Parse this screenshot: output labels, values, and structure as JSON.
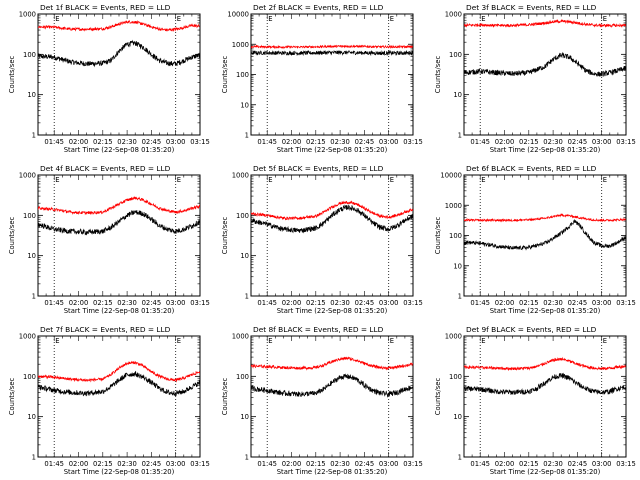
{
  "chart_data": [
    {
      "type": "line",
      "title": "Det 1f BLACK = Events, RED = LLD",
      "xlabel": "Start Time (22-Sep-08 01:35:20)",
      "ylabel": "Counts/sec",
      "x_ticks": [
        "01:45",
        "02:00",
        "02:15",
        "02:30",
        "02:45",
        "03:00",
        "03:15"
      ],
      "y_ticks": [
        "1",
        "10",
        "100",
        "1000"
      ],
      "yscale": "log",
      "ylim": [
        1,
        1000
      ],
      "xlim_minutes": [
        95,
        195
      ],
      "marker_lines_minutes": [
        105,
        180
      ],
      "marker_label": "E",
      "x_minutes": [
        95,
        105,
        115,
        125,
        135,
        140,
        145,
        150,
        155,
        160,
        165,
        170,
        175,
        180,
        185,
        190,
        195
      ],
      "series": [
        {
          "color": "#000000",
          "values": [
            90,
            85,
            65,
            58,
            60,
            70,
            120,
            180,
            190,
            150,
            100,
            70,
            60,
            58,
            70,
            85,
            95
          ]
        },
        {
          "color": "#ff0000",
          "values": [
            480,
            470,
            420,
            420,
            430,
            480,
            560,
            640,
            630,
            560,
            480,
            420,
            400,
            420,
            460,
            520,
            500
          ]
        }
      ]
    },
    {
      "type": "line",
      "title": "Det 2f BLACK = Events, RED = LLD",
      "xlabel": "Start Time (22-Sep-08 01:35:20)",
      "ylabel": "Counts/sec",
      "x_ticks": [
        "01:45",
        "02:00",
        "02:15",
        "02:30",
        "02:45",
        "03:00",
        "03:15"
      ],
      "y_ticks": [
        "1",
        "10",
        "100",
        "1000",
        "10000"
      ],
      "yscale": "log",
      "ylim": [
        1,
        10000
      ],
      "xlim_minutes": [
        95,
        195
      ],
      "marker_lines_minutes": [
        105,
        180
      ],
      "marker_label": "E",
      "x_minutes": [
        95,
        105,
        115,
        125,
        135,
        145,
        155,
        165,
        175,
        185,
        195
      ],
      "series": [
        {
          "color": "#000000",
          "values": [
            520,
            520,
            510,
            510,
            520,
            530,
            530,
            520,
            510,
            510,
            520
          ]
        },
        {
          "color": "#ff0000",
          "values": [
            830,
            820,
            810,
            810,
            820,
            850,
            860,
            840,
            820,
            820,
            830
          ]
        }
      ]
    },
    {
      "type": "line",
      "title": "Det 3f BLACK = Events, RED = LLD",
      "xlabel": "Start Time (22-Sep-08 01:35:20)",
      "ylabel": "Counts/sec",
      "x_ticks": [
        "01:45",
        "02:00",
        "02:15",
        "02:30",
        "02:45",
        "03:00",
        "03:15"
      ],
      "y_ticks": [
        "1",
        "10",
        "100",
        "1000"
      ],
      "yscale": "log",
      "ylim": [
        1,
        1000
      ],
      "xlim_minutes": [
        95,
        195
      ],
      "marker_lines_minutes": [
        105,
        180
      ],
      "marker_label": "E",
      "x_minutes": [
        95,
        105,
        115,
        125,
        135,
        145,
        150,
        155,
        160,
        165,
        170,
        175,
        180,
        185,
        195
      ],
      "series": [
        {
          "color": "#000000",
          "values": [
            35,
            38,
            35,
            33,
            35,
            50,
            75,
            95,
            85,
            60,
            40,
            33,
            32,
            35,
            45
          ]
        },
        {
          "color": "#ff0000",
          "values": [
            520,
            540,
            520,
            520,
            540,
            600,
            640,
            660,
            640,
            600,
            560,
            530,
            520,
            520,
            520
          ]
        }
      ]
    },
    {
      "type": "line",
      "title": "Det 4f BLACK = Events, RED = LLD",
      "xlabel": "Start Time (22-Sep-08 01:35:20)",
      "ylabel": "Counts/sec",
      "x_ticks": [
        "01:45",
        "02:00",
        "02:15",
        "02:30",
        "02:45",
        "03:00",
        "03:15"
      ],
      "y_ticks": [
        "1",
        "10",
        "100",
        "1000"
      ],
      "yscale": "log",
      "ylim": [
        1,
        1000
      ],
      "xlim_minutes": [
        95,
        195
      ],
      "marker_lines_minutes": [
        105,
        180
      ],
      "marker_label": "E",
      "x_minutes": [
        95,
        105,
        115,
        125,
        135,
        140,
        145,
        150,
        155,
        160,
        165,
        170,
        175,
        180,
        185,
        190,
        195
      ],
      "series": [
        {
          "color": "#000000",
          "values": [
            60,
            45,
            40,
            38,
            40,
            50,
            70,
            100,
            120,
            110,
            80,
            55,
            45,
            40,
            45,
            55,
            70
          ]
        },
        {
          "color": "#ff0000",
          "values": [
            150,
            140,
            120,
            115,
            120,
            150,
            190,
            240,
            270,
            240,
            190,
            150,
            130,
            120,
            130,
            150,
            170
          ]
        }
      ]
    },
    {
      "type": "line",
      "title": "Det 5f BLACK = Events, RED = LLD",
      "xlabel": "Start Time (22-Sep-08 01:35:20)",
      "ylabel": "Counts/sec",
      "x_ticks": [
        "01:45",
        "02:00",
        "02:15",
        "02:30",
        "02:45",
        "03:00",
        "03:15"
      ],
      "y_ticks": [
        "1",
        "10",
        "100",
        "1000"
      ],
      "yscale": "log",
      "ylim": [
        1,
        1000
      ],
      "xlim_minutes": [
        95,
        195
      ],
      "marker_lines_minutes": [
        105,
        180
      ],
      "marker_label": "E",
      "x_minutes": [
        95,
        105,
        115,
        125,
        135,
        140,
        145,
        150,
        155,
        160,
        165,
        170,
        175,
        180,
        185,
        190,
        195
      ],
      "series": [
        {
          "color": "#000000",
          "values": [
            75,
            60,
            45,
            42,
            48,
            65,
            100,
            140,
            160,
            140,
            100,
            65,
            50,
            45,
            55,
            75,
            95
          ]
        },
        {
          "color": "#ff0000",
          "values": [
            110,
            100,
            85,
            85,
            95,
            120,
            160,
            200,
            210,
            190,
            150,
            115,
            95,
            90,
            100,
            120,
            140
          ]
        }
      ]
    },
    {
      "type": "line",
      "title": "Det 6f BLACK = Events, RED = LLD",
      "xlabel": "Start Time (22-Sep-08 01:35:20)",
      "ylabel": "Counts/sec",
      "x_ticks": [
        "01:45",
        "02:00",
        "02:15",
        "02:30",
        "02:45",
        "03:00",
        "03:15"
      ],
      "y_ticks": [
        "1",
        "10",
        "100",
        "1000",
        "10000"
      ],
      "yscale": "log",
      "ylim": [
        1,
        10000
      ],
      "xlim_minutes": [
        95,
        195
      ],
      "marker_lines_minutes": [
        105,
        180
      ],
      "marker_label": "E",
      "x_minutes": [
        95,
        105,
        115,
        125,
        135,
        145,
        150,
        155,
        160,
        163,
        166,
        170,
        175,
        180,
        185,
        190,
        195
      ],
      "series": [
        {
          "color": "#000000",
          "values": [
            60,
            55,
            45,
            38,
            40,
            55,
            80,
            120,
            200,
            300,
            230,
            120,
            60,
            45,
            45,
            60,
            90
          ]
        },
        {
          "color": "#ff0000",
          "values": [
            320,
            320,
            320,
            320,
            330,
            370,
            420,
            470,
            450,
            420,
            390,
            360,
            330,
            320,
            320,
            330,
            340
          ]
        }
      ]
    },
    {
      "type": "line",
      "title": "Det 7f BLACK = Events, RED = LLD",
      "xlabel": "Start Time (22-Sep-08 01:35:20)",
      "ylabel": "Counts/sec",
      "x_ticks": [
        "01:45",
        "02:00",
        "02:15",
        "02:30",
        "02:45",
        "03:00",
        "03:15"
      ],
      "y_ticks": [
        "1",
        "10",
        "100",
        "1000"
      ],
      "yscale": "log",
      "ylim": [
        1,
        1000
      ],
      "xlim_minutes": [
        95,
        195
      ],
      "marker_lines_minutes": [
        105,
        180
      ],
      "marker_label": "E",
      "x_minutes": [
        95,
        105,
        115,
        125,
        135,
        140,
        145,
        150,
        155,
        160,
        165,
        170,
        175,
        180,
        185,
        190,
        195
      ],
      "series": [
        {
          "color": "#000000",
          "values": [
            55,
            45,
            40,
            38,
            42,
            55,
            80,
            110,
            115,
            95,
            70,
            50,
            40,
            38,
            42,
            55,
            70
          ]
        },
        {
          "color": "#ff0000",
          "values": [
            100,
            95,
            85,
            80,
            85,
            110,
            160,
            210,
            220,
            180,
            130,
            100,
            85,
            80,
            90,
            110,
            130
          ]
        }
      ]
    },
    {
      "type": "line",
      "title": "Det 8f BLACK = Events, RED = LLD",
      "xlabel": "Start Time (22-Sep-08 01:35:20)",
      "ylabel": "Counts/sec",
      "x_ticks": [
        "01:45",
        "02:00",
        "02:15",
        "02:30",
        "02:45",
        "03:00",
        "03:15"
      ],
      "y_ticks": [
        "1",
        "10",
        "100",
        "1000"
      ],
      "yscale": "log",
      "ylim": [
        1,
        1000
      ],
      "xlim_minutes": [
        95,
        195
      ],
      "marker_lines_minutes": [
        105,
        180
      ],
      "marker_label": "E",
      "x_minutes": [
        95,
        105,
        115,
        125,
        135,
        140,
        145,
        150,
        155,
        160,
        165,
        170,
        175,
        180,
        185,
        190,
        195
      ],
      "series": [
        {
          "color": "#000000",
          "values": [
            50,
            45,
            38,
            36,
            38,
            48,
            70,
            95,
            100,
            85,
            60,
            45,
            38,
            36,
            40,
            48,
            55
          ]
        },
        {
          "color": "#ff0000",
          "values": [
            180,
            175,
            165,
            160,
            165,
            190,
            230,
            270,
            280,
            250,
            210,
            180,
            165,
            160,
            170,
            185,
            200
          ]
        }
      ]
    },
    {
      "type": "line",
      "title": "Det 9f BLACK = Events, RED = LLD",
      "xlabel": "Start Time (22-Sep-08 01:35:20)",
      "ylabel": "Counts/sec",
      "x_ticks": [
        "01:45",
        "02:00",
        "02:15",
        "02:30",
        "02:45",
        "03:00",
        "03:15"
      ],
      "y_ticks": [
        "1",
        "10",
        "100",
        "1000"
      ],
      "yscale": "log",
      "ylim": [
        1,
        1000
      ],
      "xlim_minutes": [
        95,
        195
      ],
      "marker_lines_minutes": [
        105,
        180
      ],
      "marker_label": "E",
      "x_minutes": [
        95,
        105,
        115,
        125,
        135,
        140,
        145,
        150,
        155,
        160,
        165,
        170,
        175,
        180,
        185,
        190,
        195
      ],
      "series": [
        {
          "color": "#000000",
          "values": [
            50,
            48,
            42,
            40,
            42,
            50,
            70,
            95,
            105,
            90,
            65,
            50,
            42,
            40,
            42,
            50,
            55
          ]
        },
        {
          "color": "#ff0000",
          "values": [
            170,
            165,
            160,
            155,
            160,
            175,
            210,
            250,
            270,
            240,
            200,
            175,
            160,
            155,
            160,
            170,
            180
          ]
        }
      ]
    }
  ]
}
